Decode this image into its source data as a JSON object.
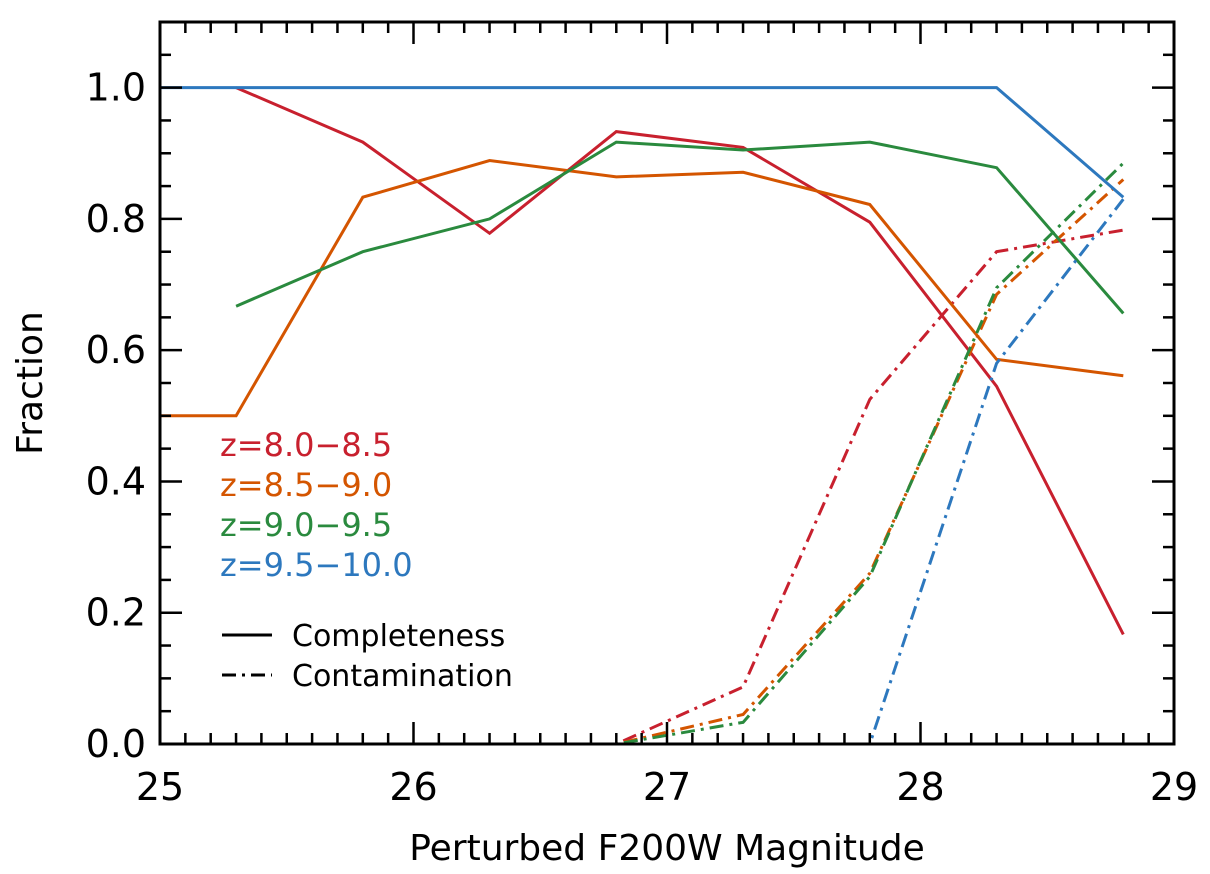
{
  "chart_data": {
    "type": "line",
    "title": "",
    "xlabel": "Perturbed F200W Magnitude",
    "ylabel": "Fraction",
    "xlim": [
      25,
      29
    ],
    "ylim": [
      0,
      1.1
    ],
    "x_ticks": [
      25,
      26,
      27,
      28,
      29
    ],
    "y_ticks": [
      0.0,
      0.2,
      0.4,
      0.6,
      0.8,
      1.0
    ],
    "x_tick_labels": [
      "25",
      "26",
      "27",
      "28",
      "29"
    ],
    "y_tick_labels": [
      "0.0",
      "0.2",
      "0.4",
      "0.6",
      "0.8",
      "1.0"
    ],
    "grid": false,
    "series": [
      {
        "name": "z=8.0−8.5",
        "color": "#c8202e",
        "completeness": {
          "x": [
            25.3,
            25.8,
            26.3,
            26.8,
            27.3,
            27.8,
            28.3,
            28.8
          ],
          "y": [
            1.0,
            0.917,
            0.778,
            0.933,
            0.909,
            0.795,
            0.545,
            0.167
          ]
        },
        "contamination": {
          "x": [
            25.0,
            25.3,
            25.8,
            26.3,
            26.8,
            27.3,
            27.8,
            28.3,
            28.8
          ],
          "y": [
            0.0,
            0.0,
            0.0,
            0.0,
            0.0,
            0.087,
            0.525,
            0.75,
            0.783
          ]
        }
      },
      {
        "name": "z=8.5−9.0",
        "color": "#d45500",
        "completeness": {
          "x": [
            25.0,
            25.3,
            25.8,
            26.3,
            26.8,
            27.3,
            27.8,
            28.3,
            28.8
          ],
          "y": [
            0.5,
            0.5,
            0.833,
            0.889,
            0.864,
            0.871,
            0.822,
            0.586,
            0.561
          ]
        },
        "contamination": {
          "x": [
            25.0,
            25.3,
            25.8,
            26.3,
            26.8,
            27.3,
            27.8,
            28.3,
            28.8
          ],
          "y": [
            0.0,
            0.0,
            0.0,
            0.0,
            0.0,
            0.045,
            0.26,
            0.685,
            0.86
          ]
        }
      },
      {
        "name": "z=9.0−9.5",
        "color": "#2a8a3e",
        "completeness": {
          "x": [
            25.3,
            25.8,
            26.3,
            26.8,
            27.3,
            27.8,
            28.3,
            28.8
          ],
          "y": [
            0.667,
            0.75,
            0.8,
            0.917,
            0.905,
            0.917,
            0.878,
            0.656
          ]
        },
        "contamination": {
          "x": [
            25.0,
            25.3,
            25.8,
            26.3,
            26.8,
            27.3,
            27.8,
            28.3,
            28.8
          ],
          "y": [
            0.0,
            0.0,
            0.0,
            0.0,
            0.0,
            0.033,
            0.255,
            0.695,
            0.885
          ]
        }
      },
      {
        "name": "z=9.5−10.0",
        "color": "#2d78be",
        "completeness": {
          "x": [
            25.0,
            25.3,
            25.8,
            26.3,
            26.8,
            27.3,
            27.8,
            28.3,
            28.8
          ],
          "y": [
            1.0,
            1.0,
            1.0,
            1.0,
            1.0,
            1.0,
            1.0,
            1.0,
            0.833
          ]
        },
        "contamination": {
          "x": [
            25.0,
            25.3,
            25.8,
            26.3,
            26.8,
            27.3,
            27.8,
            28.3,
            28.8
          ],
          "y": [
            0.0,
            0.0,
            0.0,
            0.0,
            0.0,
            0.0,
            0.0,
            0.58,
            0.83
          ]
        }
      }
    ],
    "legend": {
      "position": "lower-left",
      "line_styles": [
        {
          "label": "Completeness",
          "style": "solid"
        },
        {
          "label": "Contamination",
          "style": "dash-dot"
        }
      ]
    }
  }
}
